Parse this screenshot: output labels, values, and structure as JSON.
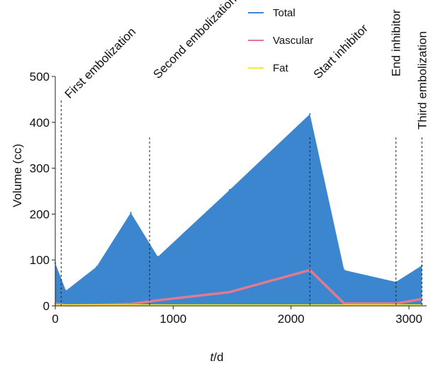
{
  "chart_data": {
    "type": "area",
    "xlabel_italic": "t",
    "xlabel_rest": "/d",
    "ylabel": "Volume (cc)",
    "xlim": [
      0,
      3150
    ],
    "ylim": [
      0,
      500
    ],
    "x_ticks": [
      0,
      1000,
      2000,
      3000
    ],
    "y_ticks": [
      0,
      100,
      200,
      300,
      400,
      500
    ],
    "legend_position": "top",
    "series": [
      {
        "name": "Total",
        "color": "#3b86cf",
        "style": "area",
        "points": [
          [
            0,
            93
          ],
          [
            90,
            33
          ],
          [
            350,
            85
          ],
          [
            640,
            203
          ],
          [
            870,
            107
          ],
          [
            1480,
            253
          ],
          [
            2160,
            418
          ],
          [
            2450,
            78
          ],
          [
            2890,
            52
          ],
          [
            3110,
            88
          ]
        ]
      },
      {
        "name": "Vascular",
        "color": "#e07a8f",
        "style": "line",
        "points": [
          [
            0,
            5
          ],
          [
            90,
            1
          ],
          [
            350,
            2
          ],
          [
            640,
            4
          ],
          [
            870,
            12
          ],
          [
            1480,
            30
          ],
          [
            2160,
            78
          ],
          [
            2450,
            5
          ],
          [
            2890,
            5
          ],
          [
            3110,
            15
          ]
        ]
      },
      {
        "name": "Fat",
        "color": "#f2ee2a",
        "style": "line",
        "points": [
          [
            0,
            1
          ],
          [
            90,
            1
          ],
          [
            350,
            1
          ],
          [
            640,
            1
          ],
          [
            870,
            1
          ],
          [
            1480,
            1
          ],
          [
            2160,
            1
          ],
          [
            2450,
            1
          ],
          [
            2890,
            1
          ],
          [
            3110,
            1
          ]
        ]
      }
    ],
    "annotations": [
      {
        "label": "First embolization",
        "x": 50
      },
      {
        "label": "Second embolization",
        "x": 800
      },
      {
        "label": "Start inhibitor",
        "x": 2160
      },
      {
        "label": "End inhibitor",
        "x": 2890
      },
      {
        "label": "Third embolization",
        "x": 3110
      }
    ]
  }
}
